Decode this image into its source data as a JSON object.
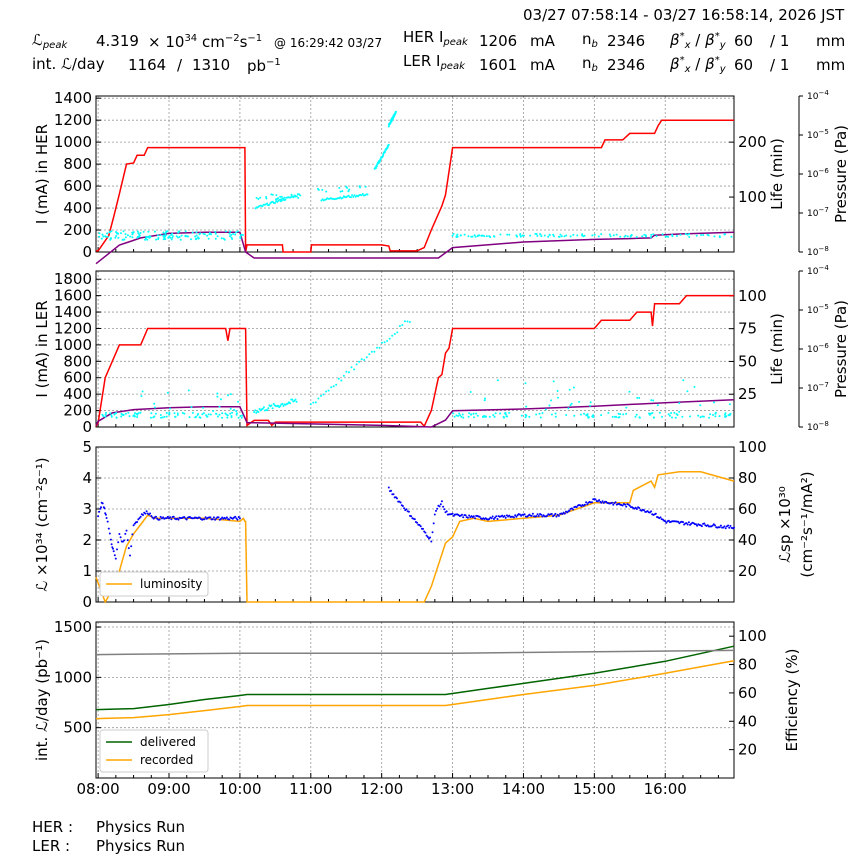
{
  "header": {
    "time_range": "03/27 07:58:14 - 03/27 16:58:14, 2026 JST",
    "lpeak_label": "peak",
    "lpeak_value": "4.319",
    "lpeak_mult": "× 10",
    "lpeak_exp": "34",
    "lpeak_unit": "cm",
    "lpeak_at": "@ 16:29:42 03/27",
    "intl_label": "int.",
    "intl_per": "/day",
    "intl_value": "1164",
    "intl_sep": "/",
    "intl_total": "1310",
    "intl_unit": "pb",
    "her_label": "HER I",
    "ler_label": "LER I",
    "peak_sub": "peak",
    "her_ipeak": "1206",
    "ler_ipeak": "1601",
    "ma": "mA",
    "nb_label": "n",
    "her_nb": "2346",
    "ler_nb": "2346",
    "beta_x": "60",
    "beta_sep": "/ 1",
    "mm": "mm"
  },
  "footer": {
    "her_label": "HER :",
    "her_status": "Physics Run",
    "ler_label": "LER :",
    "ler_status": "Physics Run"
  },
  "colors": {
    "current": "#ff0000",
    "life": "#00ffff",
    "pressure": "#800080",
    "luminosity": "#ffa500",
    "specific": "#0000ff",
    "delivered": "#006400",
    "recorded": "#ffa500",
    "efficiency": "#808080",
    "grid": "#999999"
  },
  "chart_data": [
    {
      "type": "line",
      "id": "her",
      "ylabel": "I (mA) in HER",
      "y2label": "Life (min)",
      "y3label": "Pressure (Pa)",
      "ylim": [
        0,
        1420
      ],
      "yticks": [
        0,
        200,
        400,
        600,
        800,
        1000,
        1200,
        1400
      ],
      "y2lim": [
        0,
        284
      ],
      "y2ticks": [
        100,
        200
      ],
      "y3lim_log": [
        -8,
        -4
      ],
      "y3ticks": [
        "10−8",
        "10−7",
        "10−6",
        "10−5",
        "10−4"
      ],
      "xlim": [
        7.97,
        16.97
      ],
      "series": [
        {
          "key": "current",
          "kind": "line",
          "x": [
            7.97,
            8.0,
            8.15,
            8.22,
            8.3,
            8.4,
            8.5,
            8.55,
            8.65,
            8.7,
            9.0,
            9.5,
            10.0,
            10.07,
            10.08,
            10.1,
            10.2,
            10.35,
            10.5,
            10.6,
            10.61,
            11.0,
            11.01,
            11.2,
            11.3,
            11.45,
            11.46,
            12.0,
            12.1,
            12.12,
            12.25,
            12.5,
            12.6,
            12.7,
            12.85,
            12.9,
            13.0,
            13.3,
            14.0,
            14.5,
            15.0,
            15.1,
            15.15,
            15.4,
            15.5,
            15.85,
            15.9,
            15.95,
            16.97
          ],
          "y": [
            10,
            10,
            150,
            320,
            530,
            800,
            810,
            880,
            880,
            950,
            950,
            950,
            950,
            950,
            0,
            65,
            65,
            65,
            65,
            65,
            0,
            0,
            65,
            65,
            65,
            65,
            65,
            65,
            55,
            10,
            10,
            10,
            40,
            200,
            420,
            520,
            950,
            950,
            950,
            950,
            950,
            950,
            1020,
            1020,
            1080,
            1080,
            1150,
            1200,
            1200
          ]
        },
        {
          "key": "pressure",
          "kind": "line",
          "x": [
            7.97,
            8.3,
            8.6,
            9.0,
            9.5,
            10.0,
            10.08,
            10.2,
            11.0,
            12.0,
            12.5,
            12.8,
            13.0,
            14.0,
            15.0,
            15.5,
            15.8,
            15.85,
            16.2,
            16.97
          ],
          "y": [
            5e-09,
            1.5e-08,
            2.3e-08,
            3e-08,
            3.2e-08,
            3.2e-08,
            1e-08,
            7e-09,
            7e-09,
            7e-09,
            7e-09,
            7e-09,
            1.3e-08,
            1.8e-08,
            2.1e-08,
            2.2e-08,
            2.3e-08,
            2.7e-08,
            2.9e-08,
            3.2e-08
          ]
        },
        {
          "key": "life",
          "kind": "scatter",
          "clouds": [
            [
              8.0,
              10.1,
              30,
              8,
              140
            ],
            [
              10.2,
              10.9,
              100,
              5,
              20
            ],
            [
              11.1,
              11.8,
              115,
              5,
              15
            ],
            [
              13.0,
              16.97,
              30,
              3,
              110
            ]
          ],
          "trends": [
            [
              10.22,
              10.85,
              80,
              105
            ],
            [
              11.15,
              11.8,
              95,
              105
            ],
            [
              11.9,
              12.1,
              150,
              195
            ],
            [
              12.1,
              12.2,
              230,
              255
            ]
          ]
        }
      ]
    },
    {
      "type": "line",
      "id": "ler",
      "ylabel": "I (mA) in LER",
      "y2label": "Life (min)",
      "y3label": "Pressure (Pa)",
      "ylim": [
        0,
        1900
      ],
      "yticks": [
        0,
        200,
        400,
        600,
        800,
        1000,
        1200,
        1400,
        1600,
        1800
      ],
      "y2lim": [
        0,
        119
      ],
      "y2ticks": [
        25,
        50,
        75,
        100
      ],
      "y3lim_log": [
        -8,
        -4
      ],
      "y3ticks": [
        "10−8",
        "10−7",
        "10−6",
        "10−5",
        "10−4"
      ],
      "xlim": [
        7.97,
        16.97
      ],
      "series": [
        {
          "key": "current",
          "kind": "line",
          "x": [
            7.97,
            8.0,
            8.1,
            8.2,
            8.3,
            8.6,
            8.7,
            9.0,
            9.5,
            9.8,
            9.83,
            9.86,
            10.0,
            10.08,
            10.1,
            10.2,
            10.4,
            10.45,
            10.5,
            12.55,
            12.6,
            12.7,
            12.8,
            12.85,
            12.9,
            12.95,
            13.0,
            14.0,
            15.0,
            15.1,
            15.5,
            15.6,
            15.8,
            15.82,
            15.85,
            15.9,
            16.2,
            16.3,
            16.97
          ],
          "y": [
            10,
            50,
            600,
            800,
            1000,
            1000,
            1200,
            1200,
            1200,
            1200,
            1050,
            1200,
            1200,
            1200,
            20,
            80,
            80,
            20,
            60,
            60,
            10,
            200,
            600,
            640,
            900,
            960,
            1200,
            1200,
            1200,
            1300,
            1300,
            1400,
            1400,
            1230,
            1500,
            1500,
            1500,
            1600,
            1600
          ]
        },
        {
          "key": "pressure",
          "kind": "line",
          "x": [
            7.97,
            8.0,
            8.2,
            8.5,
            9.0,
            9.5,
            10.0,
            10.1,
            11.0,
            12.0,
            12.7,
            12.9,
            13.0,
            14.0,
            15.0,
            16.0,
            16.97
          ],
          "y": [
            1.1e-08,
            1.4e-08,
            2.3e-08,
            2.8e-08,
            3.1e-08,
            3.3e-08,
            3.3e-08,
            1.3e-08,
            1.2e-08,
            1.1e-08,
            1e-08,
            1.5e-08,
            2.6e-08,
            2.9e-08,
            3.4e-08,
            4.2e-08,
            5e-08
          ]
        },
        {
          "key": "life",
          "kind": "scatter",
          "clouds": [
            [
              8.05,
              10.05,
              9,
              2,
              90
            ],
            [
              8.6,
              10.0,
              20,
              10,
              20
            ],
            [
              13.0,
              16.97,
              9,
              2,
              110
            ],
            [
              13.0,
              16.97,
              22,
              14,
              40
            ]
          ],
          "trends": [
            [
              10.2,
              10.8,
              12,
              20
            ],
            [
              11.0,
              12.4,
              17,
              82
            ]
          ]
        }
      ]
    },
    {
      "type": "line",
      "id": "lum",
      "ylabel": "ℒ ×10³⁴ (cm⁻²s⁻¹)",
      "y2label": "ℒsp ×10³⁰ (cm⁻²s⁻¹/mA²)",
      "ylim": [
        0,
        5
      ],
      "yticks": [
        0,
        1,
        2,
        3,
        4,
        5
      ],
      "y2lim": [
        0,
        100
      ],
      "y2ticks": [
        20,
        40,
        60,
        80,
        100
      ],
      "xlim": [
        7.97,
        16.97
      ],
      "legend": [
        "luminosity"
      ],
      "legend_loc": "lower-left",
      "series": [
        {
          "key": "luminosity",
          "kind": "line",
          "x": [
            7.97,
            8.1,
            8.2,
            8.3,
            8.35,
            8.4,
            8.5,
            8.6,
            8.7,
            8.8,
            9.0,
            9.5,
            10.0,
            10.05,
            10.07,
            10.08,
            10.1,
            11.0,
            12.0,
            12.6,
            12.7,
            12.8,
            12.9,
            13.0,
            13.1,
            13.3,
            13.5,
            14.0,
            14.5,
            15.0,
            15.5,
            15.55,
            15.8,
            15.85,
            15.9,
            16.2,
            16.5,
            16.97
          ],
          "y": [
            0.8,
            0.0,
            0.4,
            1.0,
            1.4,
            1.8,
            2.2,
            2.5,
            2.8,
            2.7,
            2.7,
            2.7,
            2.6,
            2.7,
            2.6,
            2.6,
            0.0,
            0.0,
            0.0,
            0.0,
            0.5,
            1.2,
            1.9,
            2.1,
            2.6,
            2.7,
            2.6,
            2.7,
            2.8,
            3.2,
            3.2,
            3.6,
            3.9,
            3.7,
            4.1,
            4.2,
            4.2,
            3.9
          ]
        },
        {
          "key": "specific",
          "kind": "scatter",
          "x": [
            8.0,
            8.03,
            8.05,
            8.08,
            8.1,
            8.12,
            8.15,
            8.18,
            8.2,
            8.22,
            8.25,
            8.3,
            8.35,
            8.4,
            8.45,
            8.5,
            8.55,
            8.6,
            8.7,
            8.8,
            9.0,
            9.5,
            10.0,
            12.1,
            12.7,
            12.75,
            12.8,
            12.85,
            12.9,
            13.0,
            13.5,
            14.0,
            14.5,
            15.0,
            15.2,
            15.5,
            15.8,
            16.0,
            16.5,
            16.97
          ],
          "y": [
            56,
            60,
            64,
            62,
            58,
            54,
            48,
            40,
            36,
            32,
            28,
            44,
            38,
            46,
            30,
            50,
            52,
            56,
            58,
            54,
            54,
            54,
            54,
            73,
            40,
            56,
            62,
            64,
            58,
            56,
            54,
            56,
            56,
            66,
            64,
            62,
            58,
            52,
            50,
            48
          ]
        }
      ]
    },
    {
      "type": "line",
      "id": "int",
      "ylabel": "int. ℒ/day (pb⁻¹)",
      "y2label": "Efficiency (%)",
      "ylim": [
        0,
        1550
      ],
      "yticks": [
        500,
        1000,
        1500
      ],
      "y2lim": [
        0,
        110
      ],
      "y2ticks": [
        20,
        40,
        60,
        80,
        100
      ],
      "xlim": [
        7.97,
        16.97
      ],
      "xticks": [
        "08:00",
        "09:00",
        "10:00",
        "11:00",
        "12:00",
        "13:00",
        "14:00",
        "15:00",
        "16:00"
      ],
      "legend": [
        "delivered",
        "recorded"
      ],
      "legend_loc": "lower-left",
      "series": [
        {
          "key": "delivered",
          "name": "delivered",
          "kind": "line",
          "x": [
            7.97,
            8.5,
            9.0,
            9.5,
            10.0,
            10.1,
            12.0,
            12.9,
            13.5,
            14.0,
            15.0,
            16.0,
            16.97
          ],
          "y": [
            680,
            690,
            730,
            780,
            820,
            830,
            830,
            830,
            890,
            940,
            1040,
            1160,
            1310
          ]
        },
        {
          "key": "recorded",
          "name": "recorded",
          "kind": "line",
          "x": [
            7.97,
            8.5,
            9.0,
            9.5,
            10.0,
            10.1,
            12.0,
            12.9,
            13.5,
            14.0,
            15.0,
            16.0,
            16.97
          ],
          "y": [
            590,
            600,
            630,
            670,
            710,
            720,
            720,
            720,
            780,
            830,
            920,
            1040,
            1164
          ]
        },
        {
          "key": "efficiency",
          "kind": "line",
          "x": [
            7.97,
            10.0,
            11.0,
            13.0,
            15.0,
            16.97
          ],
          "y": [
            87,
            88,
            88,
            88,
            89,
            90
          ]
        }
      ]
    }
  ]
}
